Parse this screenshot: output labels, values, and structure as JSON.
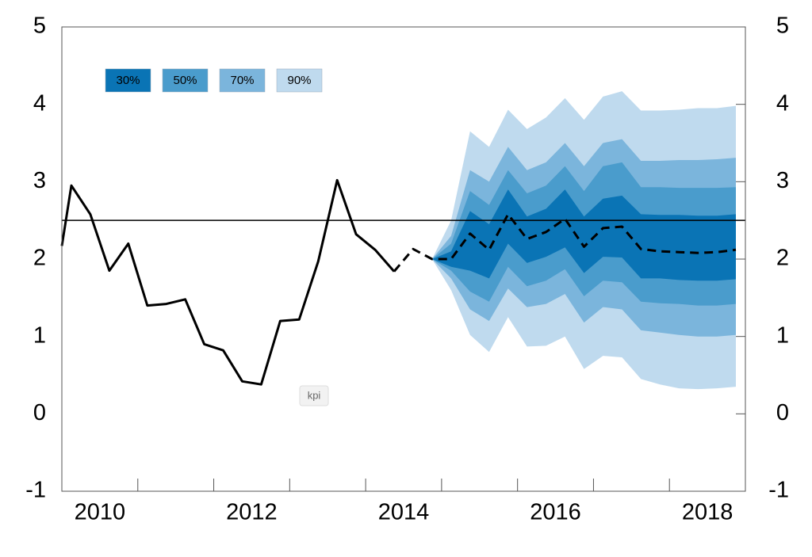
{
  "chart_data": {
    "type": "fan",
    "annotation": "kpi",
    "x": [
      2010,
      2010.125,
      2010.375,
      2010.625,
      2010.875,
      2011.125,
      2011.375,
      2011.625,
      2011.875,
      2012.125,
      2012.375,
      2012.625,
      2012.875,
      2013.125,
      2013.375,
      2013.625,
      2013.875,
      2014.125,
      2014.375,
      2014.625,
      2014.875,
      2015.125,
      2015.375,
      2015.625,
      2015.875,
      2016.125,
      2016.375,
      2016.625,
      2016.875,
      2017.125,
      2017.375,
      2017.625,
      2017.875,
      2018.125,
      2018.375,
      2018.625,
      2018.875
    ],
    "series": [
      {
        "color": "#000000",
        "dashed": false,
        "values": [
          2.17,
          2.95,
          2.58,
          1.85,
          2.2,
          1.4,
          1.42,
          1.48,
          0.9,
          0.82,
          0.42,
          0.38,
          1.2,
          1.22,
          1.97,
          3.02,
          2.32,
          2.12,
          1.84,
          null,
          null,
          null,
          null,
          null,
          null,
          null,
          null,
          null,
          null,
          null,
          null,
          null,
          null,
          null,
          null,
          null,
          null
        ]
      },
      {
        "color": "#000000",
        "dashed": true,
        "values": [
          null,
          null,
          null,
          null,
          null,
          null,
          null,
          null,
          null,
          null,
          null,
          null,
          null,
          null,
          null,
          null,
          null,
          null,
          1.84,
          2.13,
          2.0,
          2.0,
          2.33,
          2.12,
          2.58,
          2.26,
          2.35,
          2.52,
          2.16,
          2.4,
          2.42,
          2.13,
          2.1,
          2.09,
          2.08,
          2.09,
          2.12
        ]
      }
    ],
    "fan": {
      "x": [
        2014.875,
        2015.125,
        2015.375,
        2015.625,
        2015.875,
        2016.125,
        2016.375,
        2016.625,
        2016.875,
        2017.125,
        2017.375,
        2017.625,
        2017.875,
        2018.125,
        2018.375,
        2018.625,
        2018.875
      ],
      "bands": [
        {
          "name": "30%",
          "color": "#0a74b5",
          "upper": [
            2.0,
            2.1,
            2.62,
            2.45,
            2.9,
            2.55,
            2.65,
            2.9,
            2.55,
            2.78,
            2.82,
            2.58,
            2.57,
            2.57,
            2.56,
            2.56,
            2.58
          ],
          "lower": [
            2.0,
            1.9,
            1.85,
            1.75,
            2.2,
            1.95,
            2.03,
            2.15,
            1.82,
            2.03,
            2.02,
            1.75,
            1.75,
            1.73,
            1.72,
            1.72,
            1.74
          ]
        },
        {
          "name": "50%",
          "color": "#4a9ccc",
          "upper": [
            2.0,
            2.2,
            2.88,
            2.7,
            3.15,
            2.85,
            2.95,
            3.2,
            2.88,
            3.2,
            3.25,
            2.93,
            2.93,
            2.92,
            2.92,
            2.92,
            2.93
          ],
          "lower": [
            2.0,
            1.85,
            1.58,
            1.45,
            1.9,
            1.65,
            1.72,
            1.87,
            1.52,
            1.72,
            1.7,
            1.45,
            1.43,
            1.42,
            1.4,
            1.4,
            1.42
          ]
        },
        {
          "name": "70%",
          "color": "#7bb5dc",
          "upper": [
            2.0,
            2.3,
            3.15,
            3.0,
            3.45,
            3.15,
            3.25,
            3.5,
            3.2,
            3.5,
            3.55,
            3.27,
            3.27,
            3.28,
            3.28,
            3.29,
            3.31
          ],
          "lower": [
            2.0,
            1.75,
            1.35,
            1.2,
            1.62,
            1.38,
            1.42,
            1.55,
            1.18,
            1.38,
            1.35,
            1.08,
            1.05,
            1.02,
            1.0,
            1.0,
            1.02
          ]
        },
        {
          "name": "90%",
          "color": "#bfdaee",
          "upper": [
            2.0,
            2.5,
            3.65,
            3.45,
            3.93,
            3.68,
            3.83,
            4.08,
            3.8,
            4.1,
            4.17,
            3.92,
            3.92,
            3.93,
            3.95,
            3.95,
            3.98
          ],
          "lower": [
            2.0,
            1.6,
            1.02,
            0.8,
            1.25,
            0.87,
            0.88,
            1.0,
            0.58,
            0.75,
            0.73,
            0.45,
            0.38,
            0.33,
            0.32,
            0.33,
            0.35
          ]
        }
      ]
    },
    "hline": 2.5,
    "xlim": [
      2010,
      2019
    ],
    "xticks": [
      {
        "value": 2010.5,
        "label": "2010"
      },
      {
        "value": 2012.5,
        "label": "2012"
      },
      {
        "value": 2014.5,
        "label": "2014"
      },
      {
        "value": 2016.5,
        "label": "2016"
      },
      {
        "value": 2018.5,
        "label": "2018"
      }
    ],
    "xminor_ticks": [
      2011,
      2012,
      2013,
      2014,
      2015,
      2016,
      2017,
      2018
    ],
    "ylim": [
      -1,
      5
    ],
    "yticks": [
      -1,
      0,
      1,
      2,
      3,
      4,
      5
    ],
    "grid": false
  }
}
